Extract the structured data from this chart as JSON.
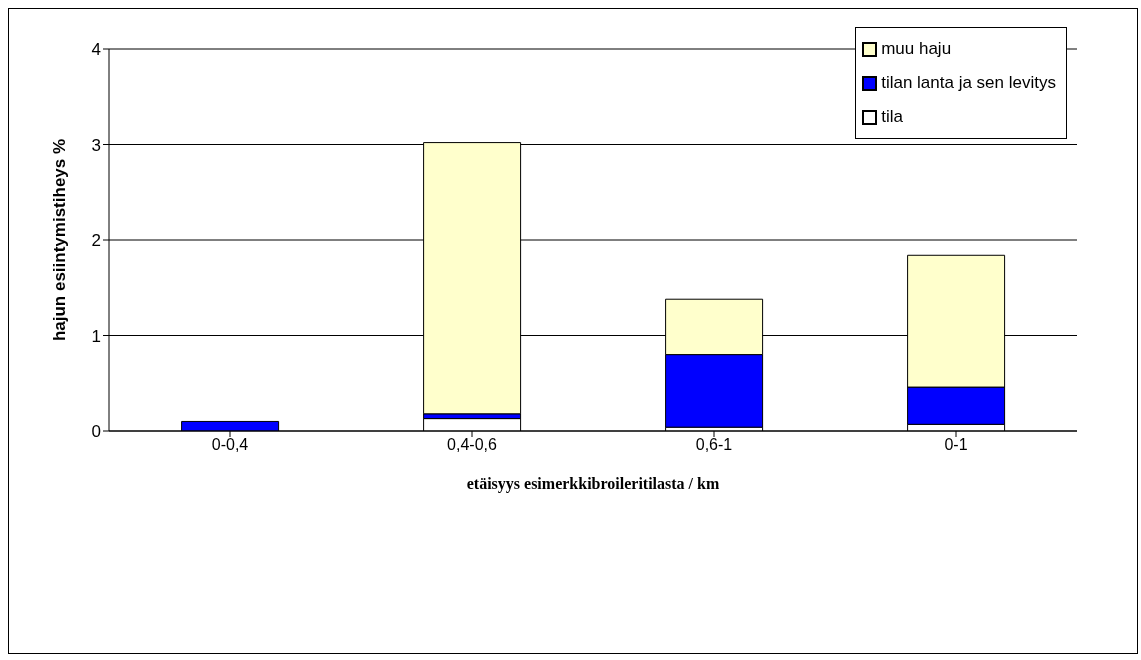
{
  "chart_data": {
    "type": "bar",
    "stacked": true,
    "xlabel": "etäisyys  esimerkkibroileritilasta / km",
    "ylabel": "hajun esiintymistiheys %",
    "categories": [
      "0-0,4",
      "0,4-0,6",
      "0,6-1",
      "0-1"
    ],
    "series": [
      {
        "name": "tila",
        "color": "#ffffff",
        "values": [
          0,
          0.13,
          0.04,
          0.07
        ]
      },
      {
        "name": "tilan lanta ja sen levitys",
        "color": "#0000ff",
        "values": [
          0.1,
          0.05,
          0.76,
          0.39
        ]
      },
      {
        "name": "muu haju",
        "color": "#ffffcc",
        "values": [
          0,
          2.84,
          0.58,
          1.38
        ]
      }
    ],
    "ylim": [
      0,
      4
    ],
    "yticks": [
      0,
      1,
      2,
      3,
      4
    ],
    "grid": "y",
    "legend": "top right"
  }
}
